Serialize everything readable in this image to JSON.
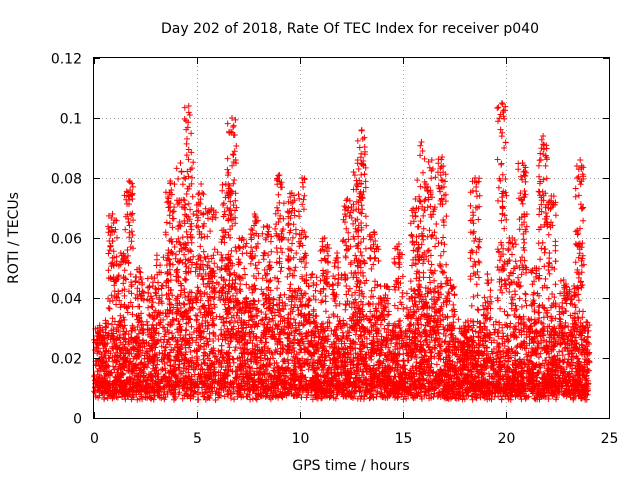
{
  "chart_data": {
    "type": "scatter",
    "title": "Day 202 of 2018, Rate Of TEC Index for receiver p040",
    "xlabel": "GPS time / hours",
    "ylabel": "ROTI / TECUs",
    "xlim": [
      0,
      25
    ],
    "ylim": [
      0,
      0.12
    ],
    "xticks": [
      0,
      5,
      10,
      15,
      20,
      25
    ],
    "xtick_labels": [
      "0",
      "5",
      "10",
      "15",
      "20",
      "25"
    ],
    "yticks": [
      0,
      0.02,
      0.04,
      0.06,
      0.08,
      0.1,
      0.12
    ],
    "ytick_labels": [
      "0",
      "0.02",
      "0.04",
      "0.06",
      "0.08",
      "0.1",
      "0.12"
    ],
    "grid": true,
    "marker": "plus",
    "series": [
      {
        "name": "ROTI",
        "color": "#ff0000",
        "description": "dense point cloud; baseline mostly 0.005-0.03 TECU over 0-24 h, spikes up to ~0.104",
        "peaks": [
          {
            "x": 0.3,
            "y": 0.03
          },
          {
            "x": 0.9,
            "y": 0.068
          },
          {
            "x": 1.3,
            "y": 0.055
          },
          {
            "x": 1.7,
            "y": 0.079
          },
          {
            "x": 2.2,
            "y": 0.05
          },
          {
            "x": 2.8,
            "y": 0.047
          },
          {
            "x": 3.7,
            "y": 0.079
          },
          {
            "x": 4.2,
            "y": 0.085
          },
          {
            "x": 4.6,
            "y": 0.104
          },
          {
            "x": 5.2,
            "y": 0.078
          },
          {
            "x": 5.7,
            "y": 0.07
          },
          {
            "x": 6.4,
            "y": 0.078
          },
          {
            "x": 6.7,
            "y": 0.1
          },
          {
            "x": 7.2,
            "y": 0.06
          },
          {
            "x": 7.8,
            "y": 0.068
          },
          {
            "x": 8.4,
            "y": 0.064
          },
          {
            "x": 9.0,
            "y": 0.081
          },
          {
            "x": 9.6,
            "y": 0.075
          },
          {
            "x": 10.1,
            "y": 0.08
          },
          {
            "x": 10.6,
            "y": 0.048
          },
          {
            "x": 11.2,
            "y": 0.06
          },
          {
            "x": 11.8,
            "y": 0.055
          },
          {
            "x": 12.3,
            "y": 0.073
          },
          {
            "x": 12.8,
            "y": 0.086
          },
          {
            "x": 13.0,
            "y": 0.096
          },
          {
            "x": 13.6,
            "y": 0.062
          },
          {
            "x": 14.1,
            "y": 0.044
          },
          {
            "x": 14.8,
            "y": 0.058
          },
          {
            "x": 15.4,
            "y": 0.043
          },
          {
            "x": 15.6,
            "y": 0.073
          },
          {
            "x": 15.9,
            "y": 0.092
          },
          {
            "x": 16.4,
            "y": 0.086
          },
          {
            "x": 16.9,
            "y": 0.087
          },
          {
            "x": 17.3,
            "y": 0.046
          },
          {
            "x": 18.0,
            "y": 0.03
          },
          {
            "x": 18.5,
            "y": 0.08
          },
          {
            "x": 19.1,
            "y": 0.048
          },
          {
            "x": 19.8,
            "y": 0.105
          },
          {
            "x": 20.3,
            "y": 0.06
          },
          {
            "x": 20.8,
            "y": 0.085
          },
          {
            "x": 21.4,
            "y": 0.05
          },
          {
            "x": 21.8,
            "y": 0.094
          },
          {
            "x": 22.2,
            "y": 0.074
          },
          {
            "x": 22.8,
            "y": 0.046
          },
          {
            "x": 23.3,
            "y": 0.044
          },
          {
            "x": 23.6,
            "y": 0.086
          },
          {
            "x": 23.9,
            "y": 0.032
          }
        ]
      }
    ]
  }
}
